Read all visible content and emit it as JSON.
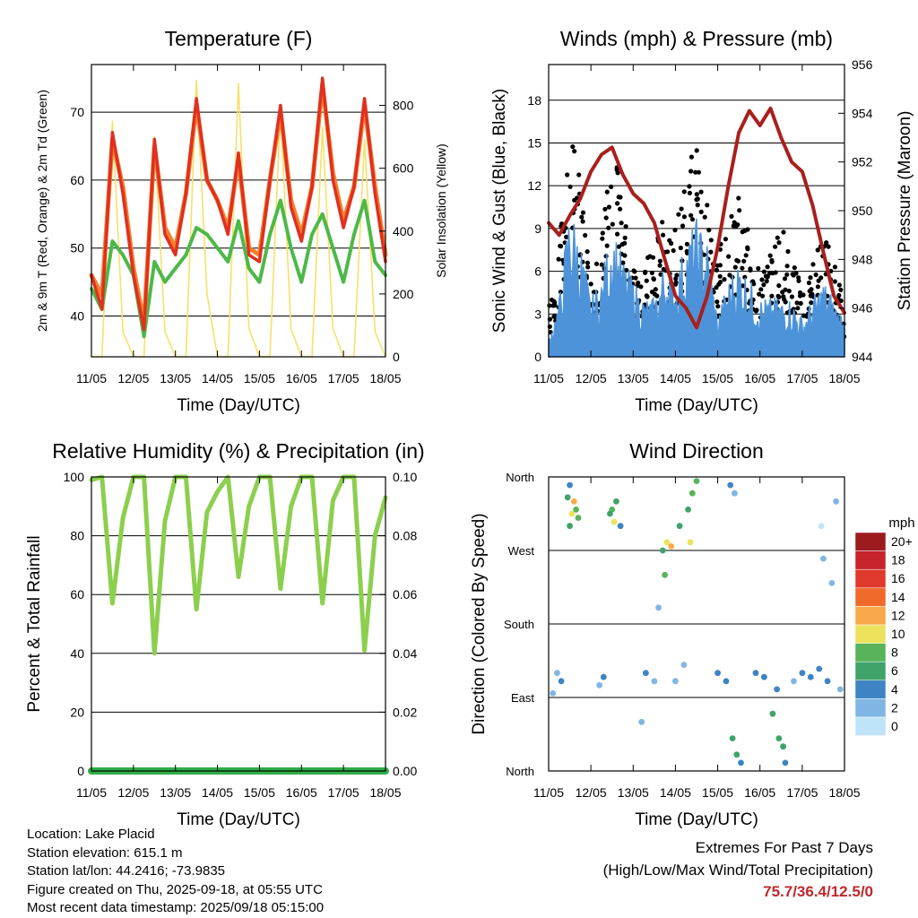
{
  "colors": {
    "temp2m": "#e03020",
    "temp9m": "#f47f2b",
    "dewpoint": "#4db848",
    "solar": "#f7e06a",
    "wind": "#4d93d9",
    "gust": "#000000",
    "pressure": "#a8201c",
    "rh": "#8ccf4e",
    "precip": "#2fae46"
  },
  "info": {
    "location": "Location: Lake Placid",
    "elevation": "Station elevation: 615.1 m",
    "latlon": "Station lat/lon: 44.2416; -73.9835",
    "created": "Figure created on Thu, 2025-09-18, at 05:55 UTC",
    "recent": "Most recent data timestamp: 2025/09/18 05:15:00"
  },
  "extremes": {
    "line1": "Extremes For Past 7 Days",
    "line2": "(High/Low/Max Wind/Total Precipitation)",
    "values": "75.7/36.4/12.5/0"
  },
  "chart_data": [
    {
      "type": "line",
      "title": "Temperature (F)",
      "xlabel": "Time (Day/UTC)",
      "ylabel": "2m & 9m T (Red, Orange) & 2m Td (Green)",
      "ylabel_right": "Solar Insolation (Yellow)",
      "x_ticks": [
        "11/05",
        "12/05",
        "13/05",
        "14/05",
        "15/05",
        "16/05",
        "17/05",
        "18/05"
      ],
      "ylim": [
        34,
        77
      ],
      "yticks": [
        40,
        50,
        60,
        70
      ],
      "ylim_right": [
        0,
        930
      ],
      "yticks_right": [
        0,
        200,
        400,
        600,
        800
      ],
      "grid": "horizontal",
      "x": [
        0,
        0.25,
        0.5,
        0.75,
        1,
        1.25,
        1.5,
        1.75,
        2,
        2.25,
        2.5,
        2.75,
        3,
        3.25,
        3.5,
        3.75,
        4,
        4.25,
        4.5,
        4.75,
        5,
        5.25,
        5.5,
        5.75,
        6,
        6.25,
        6.5,
        6.75,
        7
      ],
      "series": [
        {
          "values": [
            46,
            41,
            67,
            58,
            46,
            38,
            66,
            52,
            49,
            58,
            72,
            60,
            57,
            52,
            64,
            49,
            48,
            60,
            71,
            56,
            51,
            59,
            75,
            60,
            53,
            59,
            72,
            58,
            48
          ]
        },
        {
          "values": [
            46,
            43,
            66,
            59,
            47,
            39,
            65,
            53,
            50,
            58,
            71,
            60,
            57,
            53,
            63,
            50,
            49,
            60,
            70,
            57,
            52,
            59,
            74,
            61,
            54,
            59,
            71,
            59,
            49
          ]
        },
        {
          "values": [
            44,
            41,
            51,
            49,
            46,
            37,
            48,
            45,
            47,
            49,
            53,
            52,
            50,
            48,
            54,
            47,
            45,
            52,
            57,
            50,
            45,
            52,
            55,
            50,
            45,
            52,
            57,
            48,
            46
          ]
        },
        {
          "values": [
            0,
            0,
            750,
            80,
            0,
            0,
            700,
            80,
            0,
            0,
            880,
            200,
            0,
            0,
            870,
            90,
            0,
            0,
            790,
            90,
            0,
            0,
            730,
            90,
            0,
            0,
            690,
            80,
            0
          ]
        }
      ]
    },
    {
      "type": "line",
      "title": "Winds (mph) & Pressure (mb)",
      "xlabel": "Time (Day/UTC)",
      "ylabel": "Sonic Wind & Gust (Blue, Black)",
      "ylabel_right": "Station Pressure (Maroon)",
      "x_ticks": [
        "11/05",
        "12/05",
        "13/05",
        "14/05",
        "15/05",
        "16/05",
        "17/05",
        "18/05"
      ],
      "ylim": [
        0,
        20.5
      ],
      "yticks": [
        0,
        3,
        6,
        9,
        12,
        15,
        18
      ],
      "ylim_right": [
        944,
        956
      ],
      "yticks_right": [
        944,
        946,
        948,
        950,
        952,
        954,
        956
      ],
      "grid": "horizontal",
      "x": [
        0,
        0.25,
        0.5,
        0.75,
        1,
        1.25,
        1.5,
        1.75,
        2,
        2.25,
        2.5,
        2.75,
        3,
        3.25,
        3.5,
        3.75,
        4,
        4.25,
        4.5,
        4.75,
        5,
        5.25,
        5.5,
        5.75,
        6,
        6.25,
        6.5,
        6.75,
        7
      ],
      "series": [
        {
          "values": [
            1,
            3,
            8,
            6,
            3,
            4,
            7,
            5,
            4,
            3,
            3,
            5,
            4,
            6,
            7,
            6,
            2,
            4,
            5,
            4,
            3,
            3,
            3,
            3,
            2,
            3,
            4,
            3,
            2
          ]
        },
        {
          "values": [
            3,
            6,
            16,
            10,
            5,
            7,
            13,
            9,
            6,
            6,
            6,
            9,
            8,
            10,
            14,
            9,
            6,
            8,
            10,
            7,
            5,
            6,
            8,
            6,
            4,
            6,
            7,
            6,
            3
          ]
        },
        {
          "values": [
            949.5,
            949,
            949.8,
            950.5,
            951.6,
            952.3,
            952.6,
            951.5,
            950.7,
            950.3,
            949.5,
            948,
            946.5,
            946,
            945.2,
            946.5,
            948.5,
            951,
            953.2,
            954.1,
            953.5,
            954.2,
            953,
            952,
            951.6,
            950.2,
            948.3,
            946.5,
            945.8
          ]
        }
      ]
    },
    {
      "type": "line",
      "title": "Relative Humidity (%) & Precipitation (in)",
      "xlabel": "Time (Day/UTC)",
      "ylabel": "Percent & Total Rainfall",
      "x_ticks": [
        "11/05",
        "12/05",
        "13/05",
        "14/05",
        "15/05",
        "16/05",
        "17/05",
        "18/05"
      ],
      "ylim": [
        0,
        100
      ],
      "yticks": [
        0,
        20,
        40,
        60,
        80,
        100
      ],
      "ylim_right": [
        0,
        0.1
      ],
      "yticks_right": [
        "0.00",
        "0.02",
        "0.04",
        "0.06",
        "0.08",
        "0.10"
      ],
      "grid": "horizontal",
      "x": [
        0,
        0.25,
        0.5,
        0.75,
        1,
        1.25,
        1.5,
        1.75,
        2,
        2.25,
        2.5,
        2.75,
        3,
        3.25,
        3.5,
        3.75,
        4,
        4.25,
        4.5,
        4.75,
        5,
        5.25,
        5.5,
        5.75,
        6,
        6.25,
        6.5,
        6.75,
        7
      ],
      "series": [
        {
          "values": [
            99,
            100,
            57,
            86,
            100,
            100,
            40,
            85,
            100,
            100,
            55,
            88,
            95,
            100,
            66,
            90,
            100,
            100,
            62,
            90,
            100,
            100,
            57,
            92,
            100,
            100,
            41,
            80,
            93
          ]
        },
        {
          "values": [
            0,
            0,
            0,
            0,
            0,
            0,
            0,
            0,
            0,
            0,
            0,
            0,
            0,
            0,
            0,
            0,
            0,
            0,
            0,
            0,
            0,
            0,
            0,
            0,
            0,
            0,
            0,
            0,
            0
          ]
        }
      ]
    },
    {
      "type": "scatter",
      "title": "Wind Direction",
      "xlabel": "Time (Day/UTC)",
      "ylabel": "Direction (Colored By Speed)",
      "x_ticks": [
        "11/05",
        "12/05",
        "13/05",
        "14/05",
        "15/05",
        "16/05",
        "17/05",
        "18/05"
      ],
      "y_ticks": [
        "North",
        "East",
        "South",
        "West",
        "North"
      ],
      "ylim": [
        0,
        360
      ],
      "legend_title": "mph",
      "legend_labels": [
        "20+",
        "18",
        "16",
        "14",
        "12",
        "10",
        "8",
        "6",
        "4",
        "2",
        "0"
      ],
      "legend_colors": [
        "#9b1b1e",
        "#c7232a",
        "#e03a2c",
        "#f06a2c",
        "#f9a94b",
        "#ece25b",
        "#58b35a",
        "#3fa36a",
        "#3e84c4",
        "#7fb6e3",
        "#bfe4f7"
      ],
      "legend_placement": "right",
      "points": [
        {
          "x": 0.5,
          "y": 300,
          "s": 7
        },
        {
          "x": 0.55,
          "y": 315,
          "s": 10
        },
        {
          "x": 0.6,
          "y": 330,
          "s": 12
        },
        {
          "x": 0.65,
          "y": 320,
          "s": 8
        },
        {
          "x": 0.45,
          "y": 335,
          "s": 6
        },
        {
          "x": 0.7,
          "y": 310,
          "s": 9
        },
        {
          "x": 0.5,
          "y": 350,
          "s": 5
        },
        {
          "x": 0.2,
          "y": 120,
          "s": 3
        },
        {
          "x": 0.3,
          "y": 110,
          "s": 4
        },
        {
          "x": 0.1,
          "y": 95,
          "s": 2
        },
        {
          "x": 1.5,
          "y": 320,
          "s": 8
        },
        {
          "x": 1.55,
          "y": 305,
          "s": 11
        },
        {
          "x": 1.6,
          "y": 330,
          "s": 7
        },
        {
          "x": 1.45,
          "y": 315,
          "s": 6
        },
        {
          "x": 1.7,
          "y": 300,
          "s": 5
        },
        {
          "x": 1.3,
          "y": 115,
          "s": 4
        },
        {
          "x": 1.2,
          "y": 105,
          "s": 3
        },
        {
          "x": 2.3,
          "y": 120,
          "s": 4
        },
        {
          "x": 2.5,
          "y": 110,
          "s": 3
        },
        {
          "x": 2.2,
          "y": 60,
          "s": 2
        },
        {
          "x": 2.6,
          "y": 200,
          "s": 3
        },
        {
          "x": 2.7,
          "y": 270,
          "s": 7
        },
        {
          "x": 2.8,
          "y": 280,
          "s": 10
        },
        {
          "x": 2.9,
          "y": 275,
          "s": 12
        },
        {
          "x": 2.75,
          "y": 240,
          "s": 8
        },
        {
          "x": 3.1,
          "y": 300,
          "s": 6
        },
        {
          "x": 3.3,
          "y": 320,
          "s": 7
        },
        {
          "x": 3.4,
          "y": 340,
          "s": 9
        },
        {
          "x": 3.5,
          "y": 355,
          "s": 8
        },
        {
          "x": 3.35,
          "y": 280,
          "s": 10
        },
        {
          "x": 3.2,
          "y": 130,
          "s": 3
        },
        {
          "x": 3.0,
          "y": 110,
          "s": 2
        },
        {
          "x": 4.0,
          "y": 120,
          "s": 4
        },
        {
          "x": 4.2,
          "y": 110,
          "s": 5
        },
        {
          "x": 4.35,
          "y": 40,
          "s": 6
        },
        {
          "x": 4.45,
          "y": 20,
          "s": 7
        },
        {
          "x": 4.55,
          "y": 10,
          "s": 5
        },
        {
          "x": 4.3,
          "y": 350,
          "s": 4
        },
        {
          "x": 4.4,
          "y": 340,
          "s": 3
        },
        {
          "x": 4.9,
          "y": 120,
          "s": 5
        },
        {
          "x": 5.1,
          "y": 115,
          "s": 4
        },
        {
          "x": 5.3,
          "y": 70,
          "s": 6
        },
        {
          "x": 5.45,
          "y": 40,
          "s": 7
        },
        {
          "x": 5.55,
          "y": 30,
          "s": 6
        },
        {
          "x": 5.6,
          "y": 10,
          "s": 5
        },
        {
          "x": 5.4,
          "y": 100,
          "s": 4
        },
        {
          "x": 5.8,
          "y": 110,
          "s": 3
        },
        {
          "x": 6.0,
          "y": 120,
          "s": 4
        },
        {
          "x": 6.2,
          "y": 115,
          "s": 4
        },
        {
          "x": 6.4,
          "y": 125,
          "s": 5
        },
        {
          "x": 6.6,
          "y": 110,
          "s": 4
        },
        {
          "x": 6.7,
          "y": 230,
          "s": 3
        },
        {
          "x": 6.8,
          "y": 330,
          "s": 2
        },
        {
          "x": 6.9,
          "y": 100,
          "s": 3
        },
        {
          "x": 6.5,
          "y": 260,
          "s": 2
        },
        {
          "x": 6.45,
          "y": 300,
          "s": 1
        }
      ]
    }
  ]
}
